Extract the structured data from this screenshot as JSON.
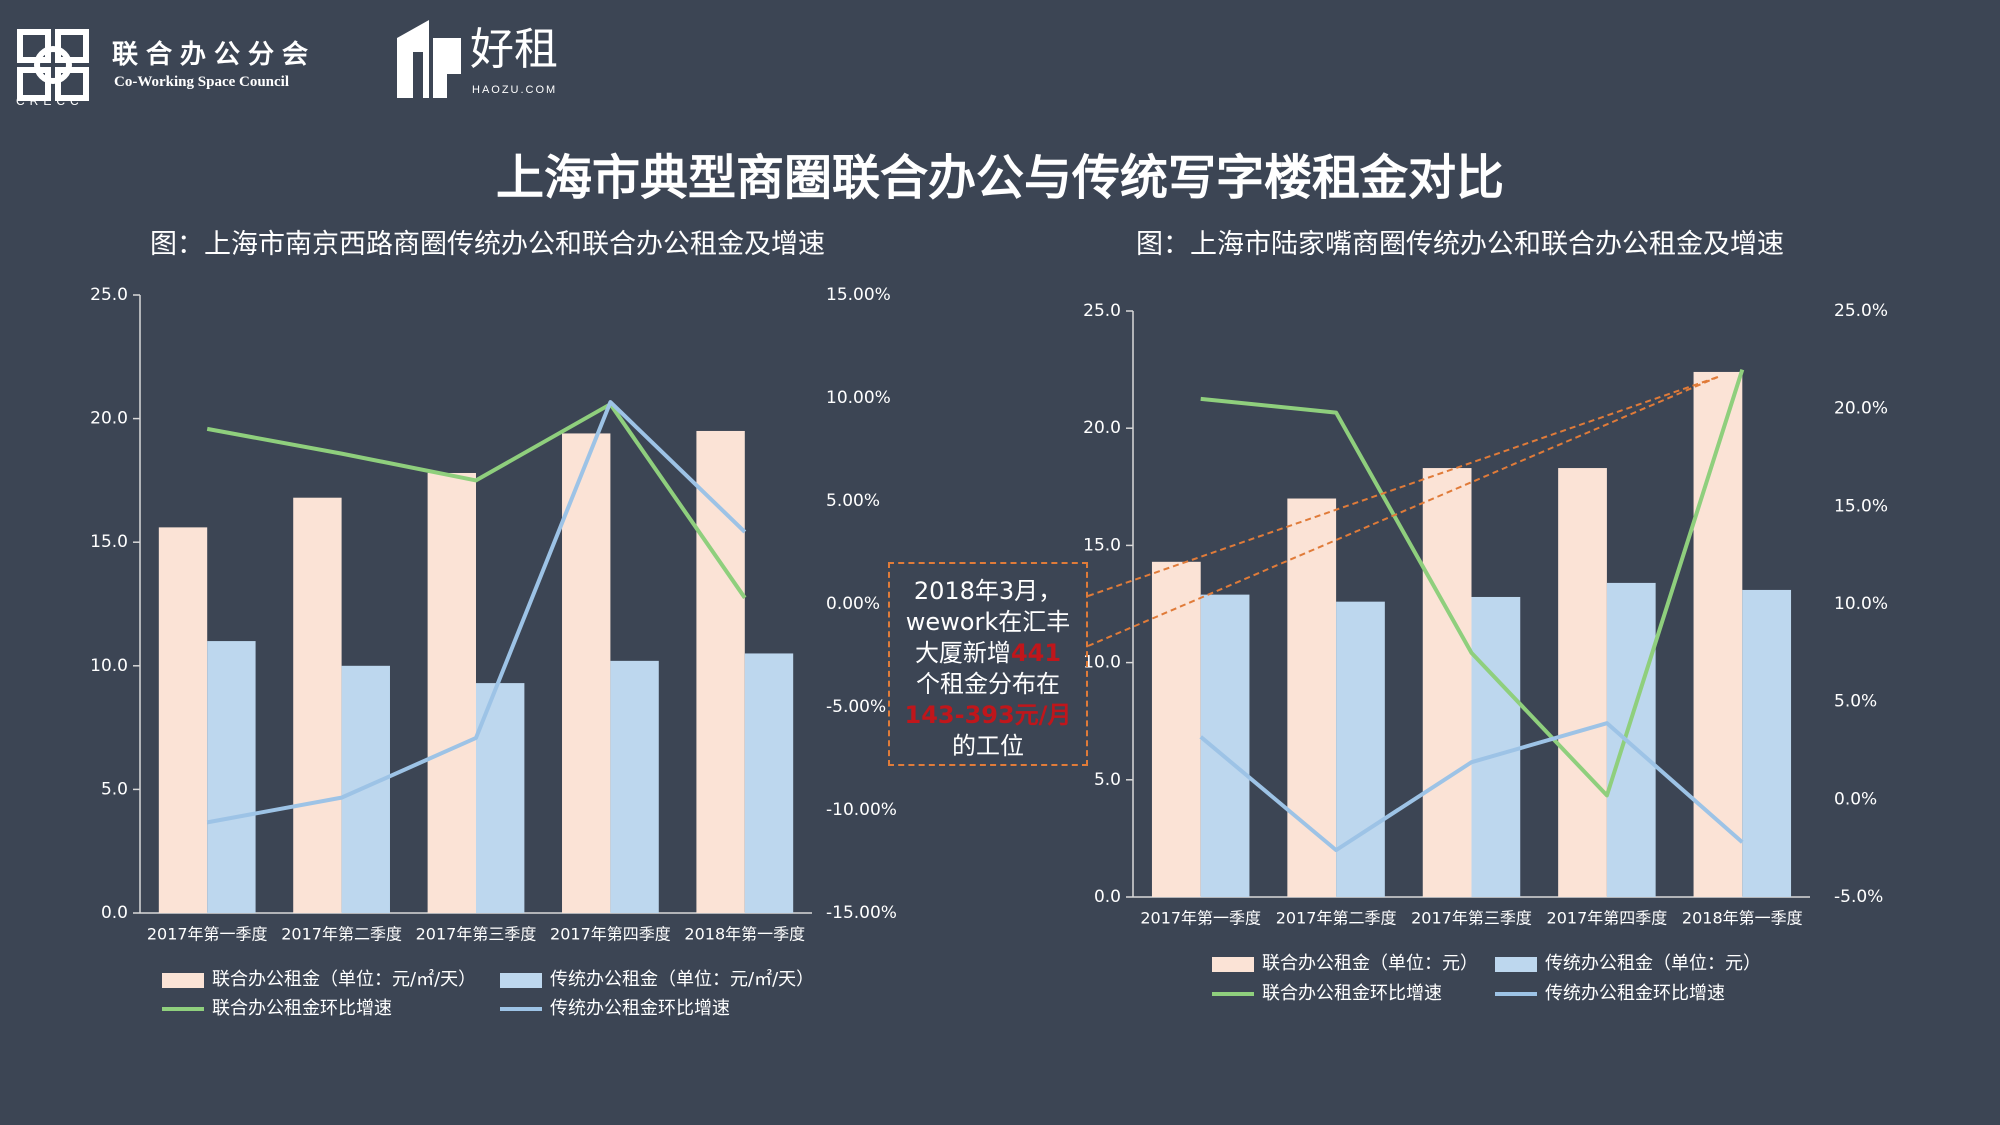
{
  "header": {
    "crecc_logo_text": "CRECC",
    "council_cn": "联合办公分会",
    "council_en": "Co-Working Space Council",
    "haozu_cn": "好租",
    "haozu_en": "HAOZU.COM"
  },
  "title": "上海市典型商圈联合办公与传统写字楼租金对比",
  "callout": {
    "line1": "2018年3月，",
    "line2": "wework在汇丰",
    "line3_pre": "大厦新增",
    "line3_hl": "441",
    "line4": "个租金分布在",
    "line5_hl": "143-393元/月",
    "line6": "的工位"
  },
  "colors": {
    "background": "#3c4554",
    "bar_cowork": "#fbe3d6",
    "bar_trad": "#bdd7ee",
    "line_cowork": "#8fcf7d",
    "line_trad": "#9dc3e6",
    "callout_border": "#e07b39",
    "highlight": "#c0161b"
  },
  "chart_data": [
    {
      "type": "bar",
      "title": "图：上海市南京西路商圈传统办公和联合办公租金及增速",
      "categories": [
        "2017年第一季度",
        "2017年第二季度",
        "2017年第三季度",
        "2017年第四季度",
        "2018年第一季度"
      ],
      "ylim": [
        0,
        25
      ],
      "y_ticks": [
        "0.0",
        "5.0",
        "10.0",
        "15.0",
        "20.0",
        "25.0"
      ],
      "y2lim": [
        -15,
        15
      ],
      "y2_ticks": [
        "-15.00%",
        "-10.00%",
        "-5.00%",
        "0.00%",
        "5.00%",
        "10.00%",
        "15.00%"
      ],
      "series": [
        {
          "name": "联合办公租金（单位：元/㎡/天）",
          "kind": "bar",
          "values": [
            15.6,
            16.8,
            17.8,
            19.4,
            19.5
          ]
        },
        {
          "name": "传统办公租金（单位：元/㎡/天）",
          "kind": "bar",
          "values": [
            11.0,
            10.0,
            9.3,
            10.2,
            10.5
          ]
        },
        {
          "name": "联合办公租金环比增速",
          "kind": "line",
          "axis": "right",
          "values": [
            8.5,
            7.3,
            6.0,
            9.7,
            0.3
          ]
        },
        {
          "name": "传统办公租金环比增速",
          "kind": "line",
          "axis": "right",
          "values": [
            -10.6,
            -9.4,
            -6.5,
            9.8,
            3.5
          ]
        }
      ]
    },
    {
      "type": "bar",
      "title": "图：上海市陆家嘴商圈传统办公和联合办公租金及增速",
      "categories": [
        "2017年第一季度",
        "2017年第二季度",
        "2017年第三季度",
        "2017年第四季度",
        "2018年第一季度"
      ],
      "ylim": [
        0,
        25
      ],
      "y_ticks": [
        "0.0",
        "5.0",
        "10.0",
        "15.0",
        "20.0",
        "25.0"
      ],
      "y2lim": [
        -5,
        25
      ],
      "y2_ticks": [
        "-5.0%",
        "0.0%",
        "5.0%",
        "10.0%",
        "15.0%",
        "20.0%",
        "25.0%"
      ],
      "series": [
        {
          "name": "联合办公租金（单位：元）",
          "kind": "bar",
          "values": [
            14.3,
            17.0,
            18.3,
            18.3,
            22.4
          ]
        },
        {
          "name": "传统办公租金（单位：元）",
          "kind": "bar",
          "values": [
            12.9,
            12.6,
            12.8,
            13.4,
            13.1
          ]
        },
        {
          "name": "联合办公租金环比增速",
          "kind": "line",
          "axis": "right",
          "values": [
            20.5,
            19.8,
            7.5,
            0.2,
            22.0
          ]
        },
        {
          "name": "传统办公租金环比增速",
          "kind": "line",
          "axis": "right",
          "values": [
            3.2,
            -2.6,
            1.9,
            3.9,
            -2.2
          ]
        }
      ]
    }
  ]
}
